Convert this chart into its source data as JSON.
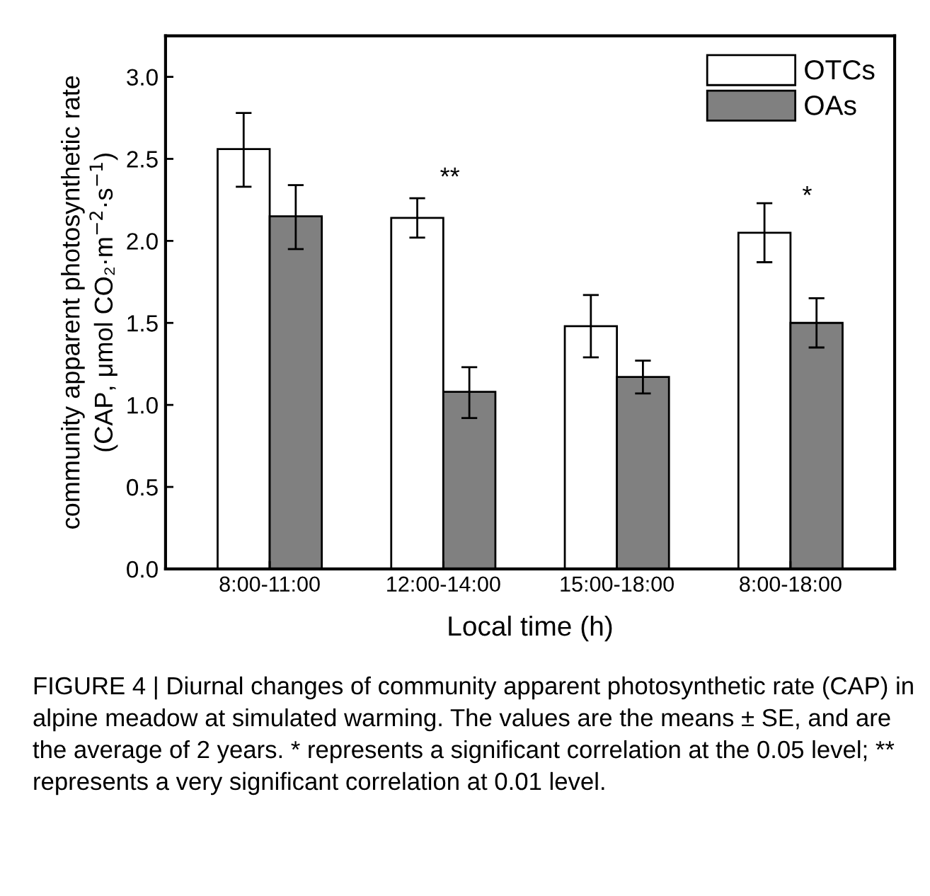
{
  "chart_data": {
    "type": "bar",
    "xlabel": "Local time (h)",
    "ylabel": "community apparent photosynthetic rate\n(CAP, μmol CO₂·m$^{−2}$·s$^{−1}$)",
    "categories": [
      "8:00-11:00",
      "12:00-14:00",
      "15:00-18:00",
      "8:00-18:00"
    ],
    "series": [
      {
        "name": "OTCs",
        "color": "#ffffff",
        "values": [
          2.56,
          2.14,
          1.48,
          2.05
        ],
        "errors": [
          [
            2.33,
            2.78
          ],
          [
            2.02,
            2.26
          ],
          [
            1.29,
            1.67
          ],
          [
            1.87,
            2.23
          ]
        ]
      },
      {
        "name": "OAs",
        "color": "#808080",
        "values": [
          2.15,
          1.08,
          1.17,
          1.5
        ],
        "errors": [
          [
            1.95,
            2.34
          ],
          [
            0.92,
            1.23
          ],
          [
            1.07,
            1.27
          ],
          [
            1.35,
            1.65
          ]
        ]
      }
    ],
    "ylim": [
      0,
      3.25
    ],
    "yticks": [
      {
        "value": 0,
        "label": "0.0"
      },
      {
        "value": 0.5,
        "label": "0.5"
      },
      {
        "value": 1,
        "label": "1.0"
      },
      {
        "value": 1.5,
        "label": "1.5"
      },
      {
        "value": 2,
        "label": "2.0"
      },
      {
        "value": 2.5,
        "label": "2.5"
      },
      {
        "value": 3,
        "label": "3.0"
      }
    ],
    "annotations": [
      "**",
      "*",
      "FIGURE 4 | Diurnal changes of community apparent photosynthetic rate (CAP) in alpine meadow at simulated warming. The values are the means ± SE, and are the average of 2 years. * represents a significant correlation at the 0.05 level; ** represents a very significant correlation at 0.01 level."
    ],
    "grid": false,
    "legend": "top right"
  }
}
